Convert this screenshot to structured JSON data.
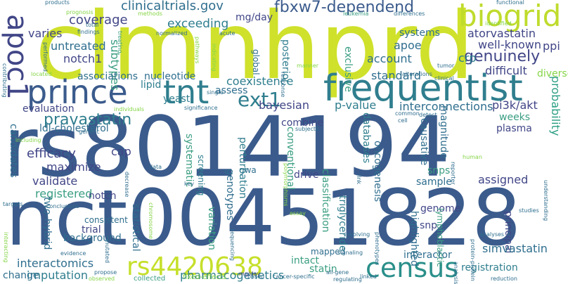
{
  "words": [
    {
      "text": "rs8014194",
      "color": "#3b5b8c"
    },
    {
      "text": "nct00451828",
      "color": "#3b5b8c"
    },
    {
      "text": "clmnhprd",
      "color": "#cfe12b"
    },
    {
      "text": "frequentist",
      "color": "#2f7e8e"
    },
    {
      "text": "prince",
      "color": "#3b5b8c"
    },
    {
      "text": "tnt",
      "color": "#2f7e8e"
    },
    {
      "text": "biogrid",
      "color": "#bfdb2c"
    },
    {
      "text": "apoc1",
      "color": "#414687"
    },
    {
      "text": "census",
      "color": "#2a8f8a"
    },
    {
      "text": "rs4420638",
      "color": "#c6df2a"
    },
    {
      "text": "fbxw7-dependend",
      "color": "#3b5b8c"
    },
    {
      "text": "ext1",
      "color": "#2f7e8e"
    },
    {
      "text": "genuinely",
      "color": "#414687"
    },
    {
      "text": "pravastatin",
      "color": "#2f7e8e"
    },
    {
      "text": "clinicaltrials.gov",
      "color": "#2f6e8e"
    },
    {
      "text": "coverage",
      "color": "#414687"
    },
    {
      "text": "exceeding",
      "color": "#2f7e8e"
    },
    {
      "text": "mg/day",
      "color": "#414687"
    },
    {
      "text": "atorvastatin",
      "color": "#414687"
    },
    {
      "text": "crp",
      "color": "#2f7e8e"
    },
    {
      "text": "well-known",
      "color": "#414687"
    },
    {
      "text": "ppi",
      "color": "#414687"
    },
    {
      "text": "untreated",
      "color": "#2f6e8e"
    },
    {
      "text": "notch1",
      "color": "#414687"
    },
    {
      "text": "varies",
      "color": "#414687"
    },
    {
      "text": "subtypes",
      "color": "#3b9e82"
    },
    {
      "text": "systems",
      "color": "#2f6e8e"
    },
    {
      "text": "account",
      "color": "#2f6e8e"
    },
    {
      "text": "apoe",
      "color": "#2f6e8e"
    },
    {
      "text": "exclusive",
      "color": "#3b9e82"
    },
    {
      "text": "posterior",
      "color": "#2f7e8e"
    },
    {
      "text": "global",
      "color": "#2f6e8e"
    },
    {
      "text": "standard",
      "color": "#2f6e8e"
    },
    {
      "text": "difficult",
      "color": "#414687"
    },
    {
      "text": "diverse",
      "color": "#86d549"
    },
    {
      "text": "probability",
      "color": "#2a9e82"
    },
    {
      "text": "pi3k/akt",
      "color": "#414687"
    },
    {
      "text": "interconnections",
      "color": "#2f6e8e"
    },
    {
      "text": "p-value",
      "color": "#2f7e8e"
    },
    {
      "text": "bayesian",
      "color": "#414687"
    },
    {
      "text": "coexistence",
      "color": "#2f7e8e"
    },
    {
      "text": "assess",
      "color": "#2f6e8e"
    },
    {
      "text": "yeast",
      "color": "#2f7e8e"
    },
    {
      "text": "lipid",
      "color": "#2f7e8e"
    },
    {
      "text": "associations",
      "color": "#2f6e8e"
    },
    {
      "text": "nucleotide",
      "color": "#2f6e8e"
    },
    {
      "text": "ldl-cholesterol",
      "color": "#2f6e8e"
    },
    {
      "text": "evaluation",
      "color": "#414687"
    },
    {
      "text": "candidates",
      "color": "#2f6e8e"
    },
    {
      "text": "efficacy",
      "color": "#414687"
    },
    {
      "text": "maximize",
      "color": "#414687"
    },
    {
      "text": "validate",
      "color": "#414687"
    },
    {
      "text": "registered",
      "color": "#3b9e82"
    },
    {
      "text": "cap",
      "color": "#414687"
    },
    {
      "text": "notch",
      "color": "#414687"
    },
    {
      "text": "trial",
      "color": "#414687"
    },
    {
      "text": "background",
      "color": "#2f6e8e"
    },
    {
      "text": "consistent",
      "color": "#2f6e8e"
    },
    {
      "text": "interactomics",
      "color": "#2f6e8e"
    },
    {
      "text": "imputation",
      "color": "#2f7e8e"
    },
    {
      "text": "change",
      "color": "#2f6e8e"
    },
    {
      "text": "two-hybrid",
      "color": "#2f6e8e"
    },
    {
      "text": "statistical",
      "color": "#2f6e8e"
    },
    {
      "text": "systematic",
      "color": "#3b9e82"
    },
    {
      "text": "screening",
      "color": "#2f7e8e"
    },
    {
      "text": "variation",
      "color": "#3b9e82"
    },
    {
      "text": "genotypes",
      "color": "#2f6e8e"
    },
    {
      "text": "gwa",
      "color": "#2f6e8e"
    },
    {
      "text": "perturbation",
      "color": "#2f7e8e"
    },
    {
      "text": "combine",
      "color": "#414687"
    },
    {
      "text": "conventional",
      "color": "#3b9e82"
    },
    {
      "text": "databases",
      "color": "#2f7e8e"
    },
    {
      "text": "oncogenesis",
      "color": "#2f6e8e"
    },
    {
      "text": "drive",
      "color": "#414687"
    },
    {
      "text": "classification",
      "color": "#3b9e82"
    },
    {
      "text": "triglyceride",
      "color": "#2f7e8e"
    },
    {
      "text": "causative",
      "color": "#2f6e8e"
    },
    {
      "text": "magnitude",
      "color": "#2f6e8e"
    },
    {
      "text": "snps",
      "color": "#3b9e82"
    },
    {
      "text": "sample",
      "color": "#2f6e8e"
    },
    {
      "text": "assigned",
      "color": "#414687"
    },
    {
      "text": "weeks",
      "color": "#3b9e82"
    },
    {
      "text": "plasma",
      "color": "#414687"
    },
    {
      "text": "genome",
      "color": "#414687"
    },
    {
      "text": "snp",
      "color": "#414687"
    },
    {
      "text": "principal",
      "color": "#414687"
    },
    {
      "text": "lymphoblastic",
      "color": "#3b9e82"
    },
    {
      "text": "highlighted",
      "color": "#2f6e8e"
    },
    {
      "text": "mapped",
      "color": "#2f6e8e"
    },
    {
      "text": "intact",
      "color": "#3b9e82"
    },
    {
      "text": "statin",
      "color": "#3b9e82"
    },
    {
      "text": "interactor",
      "color": "#2f6e8e"
    },
    {
      "text": "pharmacogenetics",
      "color": "#2f7e8e"
    },
    {
      "text": "simvastatin",
      "color": "#2f6e8e"
    },
    {
      "text": "registration",
      "color": "#2f7e8e"
    },
    {
      "text": "fixed-effects",
      "color": "#86d549"
    },
    {
      "text": "collected",
      "color": "#3b9e82"
    },
    {
      "text": "mg/day",
      "color": "#414687"
    },
    {
      "text": "leukemia",
      "color": "#3b9e82"
    },
    {
      "text": "prognosis",
      "color": "#86d549"
    },
    {
      "text": "products",
      "color": "#2f6e8e"
    },
    {
      "text": "methods",
      "color": "#86d549"
    },
    {
      "text": "total",
      "color": "#2f6e8e"
    },
    {
      "text": "findings",
      "color": "#2f6e8e"
    },
    {
      "text": "contributing",
      "color": "#2f6e8e"
    },
    {
      "text": "performed",
      "color": "#2f6e8e"
    },
    {
      "text": "treating",
      "color": "#3b9e82"
    },
    {
      "text": "normalized",
      "color": "#2f6e8e"
    },
    {
      "text": "acute",
      "color": "#2f6e8e"
    },
    {
      "text": "differences",
      "color": "#2f6e8e"
    },
    {
      "text": "functional",
      "color": "#2f6e8e"
    },
    {
      "text": "identified",
      "color": "#86d549"
    },
    {
      "text": "pathways",
      "color": "#86d549"
    },
    {
      "text": "indicating",
      "color": "#86d549"
    },
    {
      "text": "manner",
      "color": "#86d549"
    },
    {
      "text": "response",
      "color": "#2f6e8e"
    },
    {
      "text": "tumor",
      "color": "#2f6e8e"
    },
    {
      "text": "located",
      "color": "#86d549"
    },
    {
      "text": "alterations",
      "color": "#2f6e8e"
    },
    {
      "text": "clinical",
      "color": "#2f6e8e"
    },
    {
      "text": "single",
      "color": "#2f6e8e"
    },
    {
      "text": "individuals",
      "color": "#86d549"
    },
    {
      "text": "significance",
      "color": "#2f6e8e"
    },
    {
      "text": "common",
      "color": "#2f6e8e"
    },
    {
      "text": "cell",
      "color": "#2f6e8e"
    },
    {
      "text": "detect",
      "color": "#2f6e8e"
    },
    {
      "text": "subjects",
      "color": "#2f6e8e"
    },
    {
      "text": "genetic",
      "color": "#2f6e8e"
    },
    {
      "text": "including",
      "color": "#86d549"
    },
    {
      "text": "data",
      "color": "#2f6e8e"
    },
    {
      "text": "decrease",
      "color": "#2f6e8e"
    },
    {
      "text": "key",
      "color": "#2f6e8e"
    },
    {
      "text": "polymorphisms",
      "color": "#86d549"
    },
    {
      "text": "targets",
      "color": "#2f6e8e"
    },
    {
      "text": "conclusions",
      "color": "#2f6e8e"
    },
    {
      "text": "chromosome",
      "color": "#86d549"
    },
    {
      "text": "essay",
      "color": "#86d549"
    },
    {
      "text": "link",
      "color": "#2f6e8e"
    },
    {
      "text": "reporter",
      "color": "#2f6e8e"
    },
    {
      "text": "human",
      "color": "#86d549"
    },
    {
      "text": "understanding",
      "color": "#2f6e8e"
    },
    {
      "text": "studies",
      "color": "#2f6e8e"
    },
    {
      "text": "analyses",
      "color": "#2f6e8e"
    },
    {
      "text": "involving",
      "color": "#2f6e8e"
    },
    {
      "text": "phenotypes",
      "color": "#2f6e8e"
    },
    {
      "text": "signaling",
      "color": "#2f6e8e"
    },
    {
      "text": "mutated",
      "color": "#2f6e8e"
    },
    {
      "text": "interacting",
      "color": "#86d549"
    },
    {
      "text": "evidence",
      "color": "#2f6e8e"
    },
    {
      "text": "propose",
      "color": "#2f6e8e"
    },
    {
      "text": "observed",
      "color": "#86d549"
    },
    {
      "text": "sequencing",
      "color": "#2f6e8e"
    },
    {
      "text": "all-gene",
      "color": "#2f6e8e"
    },
    {
      "text": "based",
      "color": "#2f6e8e"
    },
    {
      "text": "cancer-specific",
      "color": "#2f6e8e"
    },
    {
      "text": "regulating",
      "color": "#2f6e8e"
    },
    {
      "text": "linked",
      "color": "#2f6e8e"
    },
    {
      "text": "analysis",
      "color": "#2f6e8e"
    },
    {
      "text": "protein-protein",
      "color": "#2f6e8e"
    },
    {
      "text": "reduction",
      "color": "#2f6e8e"
    }
  ]
}
